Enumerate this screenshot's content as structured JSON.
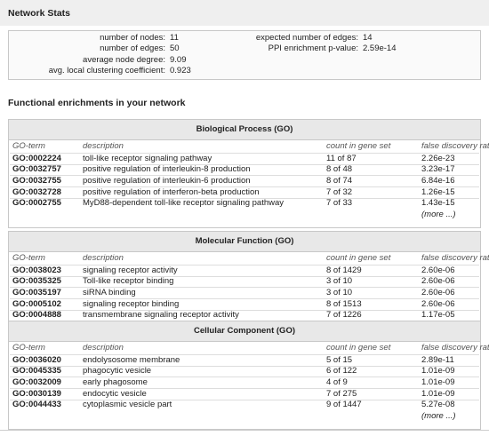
{
  "header": {
    "title": "Network Stats"
  },
  "stats": {
    "left": [
      {
        "label": "number of nodes:",
        "value": "11"
      },
      {
        "label": "number of edges:",
        "value": "50"
      },
      {
        "label": "average node degree:",
        "value": "9.09"
      },
      {
        "label": "avg. local clustering coefficient:",
        "value": "0.923"
      }
    ],
    "right": [
      {
        "label": "expected number of edges:",
        "value": "14"
      },
      {
        "label": "PPI enrichment p-value:",
        "value": "2.59e-14"
      }
    ]
  },
  "enrichment": {
    "title": "Functional enrichments in your network",
    "tables": [
      {
        "title": "Biological Process (GO)",
        "columns": [
          "GO-term",
          "description",
          "count in gene set",
          "false discovery rate"
        ],
        "rows": [
          [
            "GO:0002224",
            "toll-like receptor signaling pathway",
            "11 of 87",
            "2.26e-23"
          ],
          [
            "GO:0032757",
            "positive regulation of interleukin-8 production",
            "8 of 48",
            "3.23e-17"
          ],
          [
            "GO:0032755",
            "positive regulation of interleukin-6 production",
            "8 of 74",
            "6.84e-16"
          ],
          [
            "GO:0032728",
            "positive regulation of interferon-beta production",
            "7 of 32",
            "1.26e-15"
          ],
          [
            "GO:0002755",
            "MyD88-dependent toll-like receptor signaling pathway",
            "7 of 33",
            "1.43e-15"
          ]
        ],
        "more": "(more ...)"
      },
      {
        "title": "Molecular Function (GO)",
        "columns": [
          "GO-term",
          "description",
          "count in gene set",
          "false discovery rate"
        ],
        "rows": [
          [
            "GO:0038023",
            "signaling receptor activity",
            "8 of 1429",
            "2.60e-06"
          ],
          [
            "GO:0035325",
            "Toll-like receptor binding",
            "3 of 10",
            "2.60e-06"
          ],
          [
            "GO:0035197",
            "siRNA binding",
            "3 of 10",
            "2.60e-06"
          ],
          [
            "GO:0005102",
            "signaling receptor binding",
            "8 of 1513",
            "2.60e-06"
          ],
          [
            "GO:0004888",
            "transmembrane signaling receptor activity",
            "7 of 1226",
            "1.17e-05"
          ]
        ]
      },
      {
        "title": "Cellular Component (GO)",
        "columns": [
          "GO-term",
          "description",
          "count in gene set",
          "false discovery rate"
        ],
        "rows": [
          [
            "GO:0036020",
            "endolysosome membrane",
            "5 of 15",
            "2.89e-11"
          ],
          [
            "GO:0045335",
            "phagocytic vesicle",
            "6 of 122",
            "1.01e-09"
          ],
          [
            "GO:0032009",
            "early phagosome",
            "4 of 9",
            "1.01e-09"
          ],
          [
            "GO:0030139",
            "endocytic vesicle",
            "7 of 275",
            "1.01e-09"
          ],
          [
            "GO:0044433",
            "cytoplasmic vesicle part",
            "9 of 1447",
            "5.27e-08"
          ]
        ],
        "more": "(more ...)"
      }
    ]
  }
}
